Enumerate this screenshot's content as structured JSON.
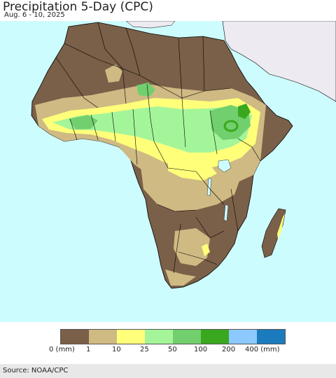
{
  "header": {
    "title": "Precipitation 5-Day (CPC)",
    "date_range": "Aug. 6 - 10, 2025"
  },
  "legend": {
    "labels": [
      "0 (mm)",
      "1",
      "10",
      "25",
      "50",
      "100",
      "200",
      "400 (mm)"
    ],
    "colors": [
      "#7a6048",
      "#cfba84",
      "#ffff7a",
      "#a4f59a",
      "#72cf6e",
      "#39a81e",
      "#8cc9ff",
      "#1c7bbd"
    ]
  },
  "footer": {
    "source": "Source: NOAA/CPC"
  },
  "colors": {
    "ocean": "#cdfcfe",
    "outside_region": "#eeeaf2",
    "border": "#000000"
  }
}
